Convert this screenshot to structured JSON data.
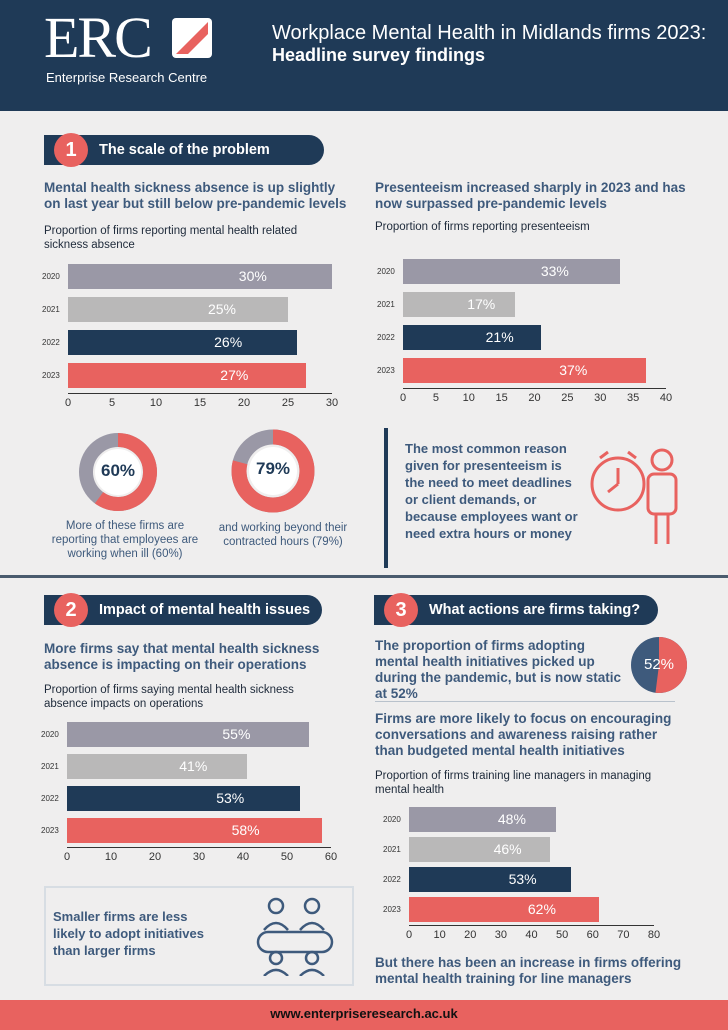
{
  "header": {
    "logo": "ERC",
    "logo_subtitle": "Enterprise Research Centre",
    "title": "Workplace Mental Health in Midlands firms 2023:",
    "subtitle": "Headline survey findings"
  },
  "colors": {
    "navy": "#1f3a57",
    "coral": "#e8625f",
    "grey_dark": "#9a98a6",
    "grey_light": "#b9b8b8"
  },
  "section1": {
    "number": "1",
    "title": "The scale of the problem",
    "left_heading": "Mental health sickness absence is up slightly on last year but still below pre-pandemic levels",
    "left_sub": "Proportion of firms reporting mental health related sickness absence",
    "right_heading": "Presenteeism increased sharply in 2023 and has now surpassed pre-pandemic levels",
    "right_sub": "Proportion of firms reporting presenteeism",
    "donut1": {
      "value": 60,
      "label": "60%",
      "caption": "More of these firms are reporting that employees are working when ill (60%)"
    },
    "donut2": {
      "value": 79,
      "label": "79%",
      "caption": "and working beyond their contracted hours (79%)"
    },
    "callout": "The most common reason given for presenteeism is the need to meet deadlines or client demands, or because employees want or need extra hours or money"
  },
  "section2": {
    "number": "2",
    "title": "Impact of mental health issues",
    "heading": "More firms say that mental health sickness absence is impacting on their operations",
    "sub": "Proportion of firms saying mental health sickness absence impacts on operations",
    "callout": "Smaller firms are less likely to adopt initiatives than larger firms"
  },
  "section3": {
    "number": "3",
    "title": "What actions are firms taking?",
    "heading1": "The proportion of firms adopting mental health initiatives picked up during the pandemic, but is now static at 52%",
    "pie_value": 52,
    "pie_label": "52%",
    "heading2": "Firms are more likely to focus on encouraging conversations and awareness raising rather than budgeted mental health initiatives",
    "sub": "Proportion of firms training line managers in managing mental health",
    "footer_heading": "But there has been an increase in firms offering mental health training for line managers"
  },
  "chart_data": [
    {
      "type": "bar",
      "orientation": "horizontal",
      "categories": [
        "2020",
        "2021",
        "2022",
        "2023"
      ],
      "values": [
        30,
        25,
        26,
        27
      ],
      "value_labels": [
        "30%",
        "25%",
        "26%",
        "27%"
      ],
      "xlim": [
        0,
        30
      ],
      "ticks": [
        "0",
        "5",
        "10",
        "15",
        "20",
        "25",
        "30"
      ]
    },
    {
      "type": "bar",
      "orientation": "horizontal",
      "categories": [
        "2020",
        "2021",
        "2022",
        "2023"
      ],
      "values": [
        33,
        17,
        21,
        37
      ],
      "value_labels": [
        "33%",
        "17%",
        "21%",
        "37%"
      ],
      "xlim": [
        0,
        40
      ],
      "ticks": [
        "0",
        "5",
        "10",
        "15",
        "20",
        "25",
        "30",
        "35",
        "40"
      ]
    },
    {
      "type": "bar",
      "orientation": "horizontal",
      "categories": [
        "2020",
        "2021",
        "2022",
        "2023"
      ],
      "values": [
        55,
        41,
        53,
        58
      ],
      "value_labels": [
        "55%",
        "41%",
        "53%",
        "58%"
      ],
      "xlim": [
        0,
        60
      ],
      "ticks": [
        "0",
        "10",
        "20",
        "30",
        "40",
        "50",
        "60"
      ]
    },
    {
      "type": "bar",
      "orientation": "horizontal",
      "categories": [
        "2020",
        "2021",
        "2022",
        "2023"
      ],
      "values": [
        48,
        46,
        53,
        62
      ],
      "value_labels": [
        "48%",
        "46%",
        "53%",
        "62%"
      ],
      "xlim": [
        0,
        80
      ],
      "ticks": [
        "0",
        "10",
        "20",
        "30",
        "40",
        "50",
        "60",
        "70",
        "80"
      ]
    }
  ],
  "footer": {
    "url": "www.enterpriseresearch.ac.uk"
  }
}
